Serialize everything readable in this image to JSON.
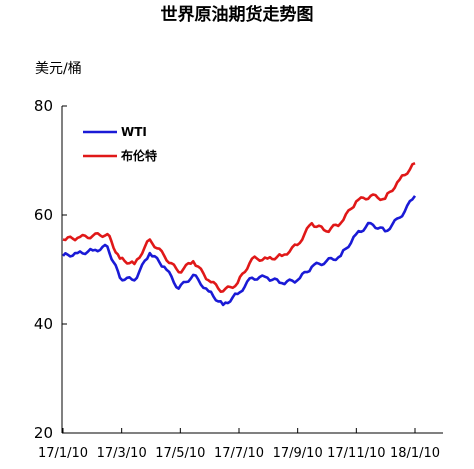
{
  "chart_data": {
    "type": "line",
    "title": "世界原油期货走势图",
    "unit_label": "美元/桶",
    "xlabel": "",
    "ylabel": "",
    "ylim": [
      20,
      80
    ],
    "y_ticks": [
      "20",
      "40",
      "60",
      "80"
    ],
    "x_ticks": [
      "17/1/10",
      "17/3/10",
      "17/5/10",
      "17/7/10",
      "17/9/10",
      "17/11/10",
      "18/1/10"
    ],
    "grid": false,
    "legend_position": "top-left",
    "x": [
      "2017-01-10",
      "2017-01-25",
      "2017-02-10",
      "2017-02-25",
      "2017-03-10",
      "2017-03-25",
      "2017-04-10",
      "2017-04-25",
      "2017-05-10",
      "2017-05-25",
      "2017-06-10",
      "2017-06-25",
      "2017-07-10",
      "2017-07-25",
      "2017-08-10",
      "2017-08-25",
      "2017-09-10",
      "2017-09-25",
      "2017-10-10",
      "2017-10-25",
      "2017-11-10",
      "2017-11-25",
      "2017-12-10",
      "2017-12-25",
      "2018-01-10"
    ],
    "series": [
      {
        "name": "WTI",
        "color": "#1a1ad6",
        "values": [
          52.5,
          53.0,
          53.5,
          54.2,
          48.5,
          48.0,
          53.0,
          50.5,
          46.5,
          49.0,
          46.0,
          43.5,
          45.5,
          48.5,
          48.5,
          47.5,
          48.0,
          50.5,
          51.5,
          52.5,
          56.5,
          58.5,
          57.0,
          59.5,
          63.5
        ]
      },
      {
        "name": "布伦特",
        "color": "#e01818",
        "values": [
          55.5,
          55.8,
          56.2,
          56.5,
          52.0,
          51.0,
          55.5,
          52.5,
          49.5,
          51.5,
          48.0,
          46.0,
          47.5,
          52.0,
          52.0,
          52.5,
          54.5,
          58.5,
          57.0,
          58.5,
          62.5,
          63.5,
          63.0,
          66.5,
          69.5
        ]
      }
    ]
  }
}
